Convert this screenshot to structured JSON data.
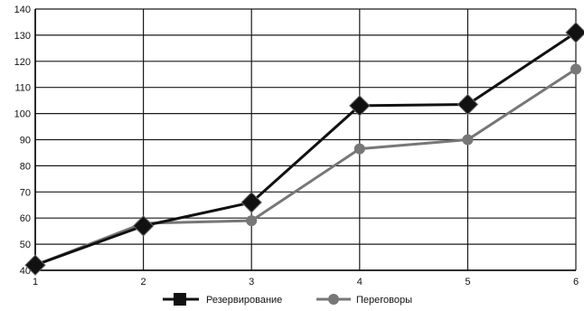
{
  "chart_data": {
    "type": "line",
    "x": [
      1,
      2,
      3,
      4,
      5,
      6
    ],
    "xlim": [
      1,
      6
    ],
    "ylim": [
      40,
      140
    ],
    "y_ticks": [
      40,
      50,
      60,
      70,
      80,
      90,
      100,
      110,
      120,
      130,
      140
    ],
    "x_ticks": [
      1,
      2,
      3,
      4,
      5,
      6
    ],
    "grid": true,
    "legend_position": "bottom",
    "series": [
      {
        "name": "Резервирование",
        "values": [
          42,
          57,
          66,
          103,
          103.5,
          131
        ],
        "color": "#111111",
        "marker": "diamond"
      },
      {
        "name": "Переговоры",
        "values": [
          42,
          58,
          59,
          86.5,
          90,
          117
        ],
        "color": "#777777",
        "marker": "circle"
      }
    ]
  }
}
